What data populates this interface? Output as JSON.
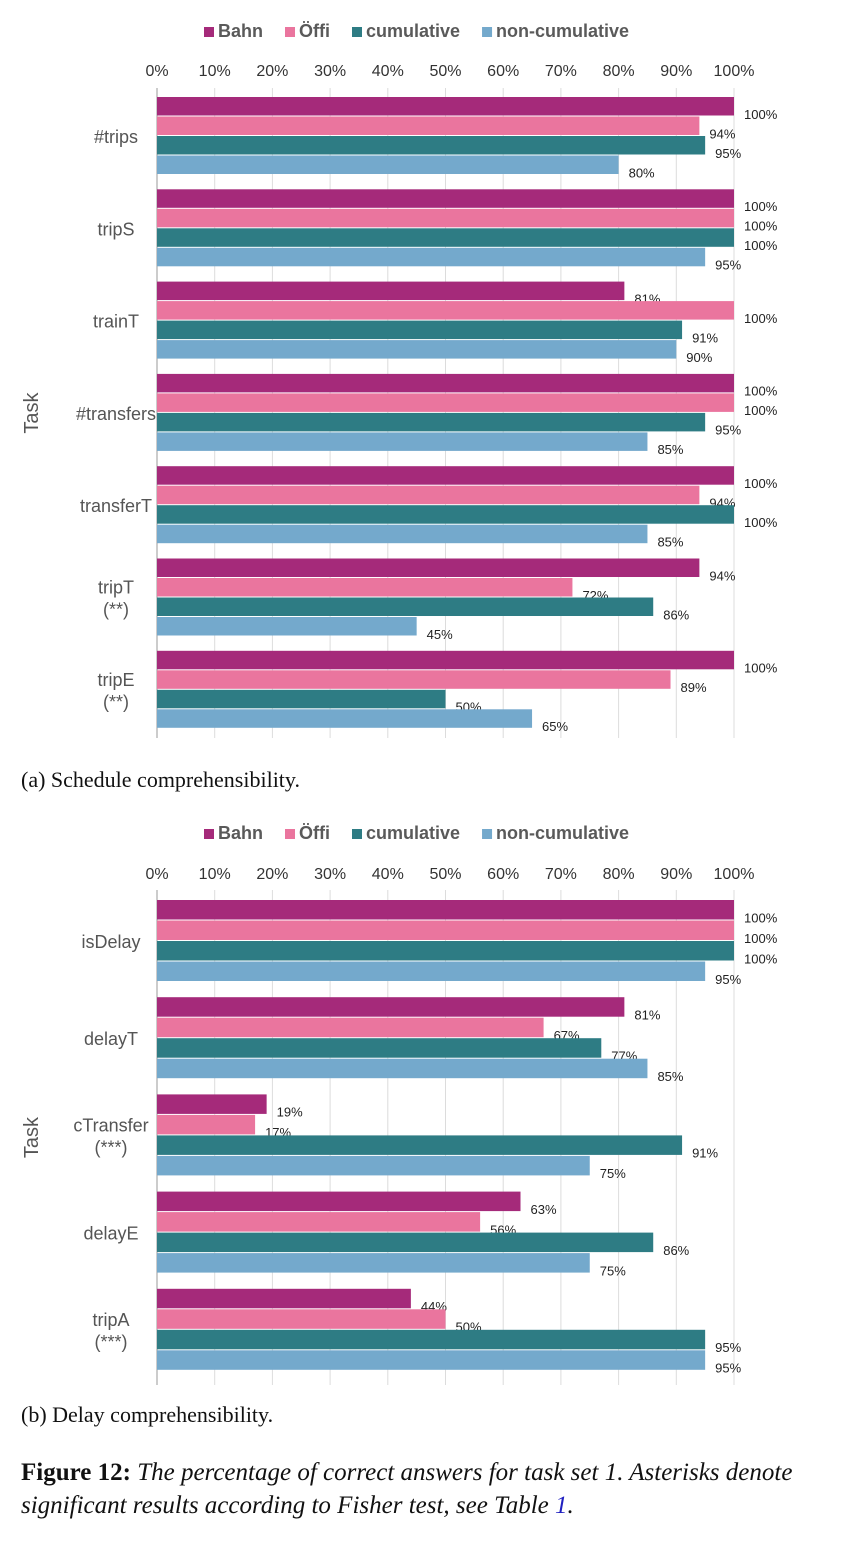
{
  "chart_data": [
    {
      "type": "bar",
      "orientation": "horizontal",
      "title": "",
      "xlabel": "",
      "ylabel": "Task",
      "xlim": [
        0,
        100
      ],
      "x_ticks": [
        "0%",
        "10%",
        "20%",
        "30%",
        "40%",
        "50%",
        "60%",
        "70%",
        "80%",
        "90%",
        "100%"
      ],
      "grid": true,
      "legend_position": "top",
      "categories": [
        [
          "#trips"
        ],
        [
          "tripS"
        ],
        [
          "trainT"
        ],
        [
          "#transfers"
        ],
        [
          "transferT"
        ],
        [
          "tripT",
          "(**)"
        ],
        [
          "tripE",
          "(**)"
        ]
      ],
      "series": [
        {
          "name": "Bahn",
          "color": "#a52a7a",
          "values": [
            100,
            100,
            81,
            100,
            100,
            94,
            100
          ]
        },
        {
          "name": "Öffi",
          "color": "#ea759e",
          "values": [
            94,
            100,
            100,
            100,
            94,
            72,
            89
          ]
        },
        {
          "name": "cumulative",
          "color": "#2e7c84",
          "values": [
            95,
            100,
            91,
            95,
            100,
            86,
            50
          ]
        },
        {
          "name": "non-cumulative",
          "color": "#74a9cc",
          "values": [
            80,
            95,
            90,
            85,
            85,
            45,
            65
          ]
        }
      ]
    },
    {
      "type": "bar",
      "orientation": "horizontal",
      "title": "",
      "xlabel": "",
      "ylabel": "Task",
      "xlim": [
        0,
        100
      ],
      "x_ticks": [
        "0%",
        "10%",
        "20%",
        "30%",
        "40%",
        "50%",
        "60%",
        "70%",
        "80%",
        "90%",
        "100%"
      ],
      "grid": true,
      "legend_position": "top",
      "categories": [
        [
          "isDelay"
        ],
        [
          "delayT"
        ],
        [
          "cTransfer",
          "(***)"
        ],
        [
          "delayE"
        ],
        [
          "tripA",
          "(***)"
        ]
      ],
      "series": [
        {
          "name": "Bahn",
          "color": "#a52a7a",
          "values": [
            100,
            81,
            19,
            63,
            44
          ]
        },
        {
          "name": "Öffi",
          "color": "#ea759e",
          "values": [
            100,
            67,
            17,
            56,
            50
          ]
        },
        {
          "name": "cumulative",
          "color": "#2e7c84",
          "values": [
            100,
            77,
            91,
            86,
            95
          ]
        },
        {
          "name": "non-cumulative",
          "color": "#74a9cc",
          "values": [
            95,
            85,
            75,
            75,
            95
          ]
        }
      ]
    }
  ],
  "captions": {
    "a": "(a) Schedule comprehensibility.",
    "b": "(b) Delay comprehensibility.",
    "figure_label": "Figure 12:",
    "figure_text": "The percentage of correct answers for task set 1. Asterisks denote significant results according to Fisher test, see Table",
    "figure_ref": "1",
    "figure_end": "."
  }
}
